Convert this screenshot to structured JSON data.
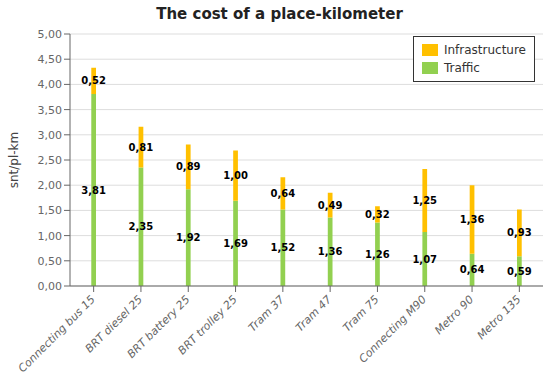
{
  "chart_data": {
    "type": "bar",
    "title": "The cost of a place-kilometer",
    "ylabel": "snt/pl-km",
    "categories": [
      "Connecting bus 15",
      "BRT diesel 25",
      "BRT battery 25",
      "BRT trolley 25",
      "Tram 37",
      "Tram 47",
      "Tram 75",
      "Connecting M90",
      "Metro 90",
      "Metro 135"
    ],
    "series": [
      {
        "name": "Traffic",
        "color": "#92D050",
        "values": [
          3.81,
          2.35,
          1.92,
          1.69,
          1.52,
          1.36,
          1.26,
          1.07,
          0.64,
          0.59
        ],
        "value_labels": [
          "3,81",
          "2,35",
          "1,92",
          "1,69",
          "1,52",
          "1,36",
          "1,26",
          "1,07",
          "0,64",
          "0,59"
        ]
      },
      {
        "name": "Infrastructure",
        "color": "#FFC000",
        "values": [
          0.52,
          0.81,
          0.89,
          1.0,
          0.64,
          0.49,
          0.32,
          1.25,
          1.36,
          0.93
        ],
        "value_labels": [
          "0,52",
          "0,81",
          "0,89",
          "1,00",
          "0,64",
          "0,49",
          "0,32",
          "1,25",
          "1,36",
          "0,93"
        ]
      }
    ],
    "stacked": true,
    "data_labels": true,
    "ylim": [
      0,
      5.0
    ],
    "yticks": [
      {
        "value": 0.0,
        "label": "0,00"
      },
      {
        "value": 0.5,
        "label": "0,50"
      },
      {
        "value": 1.0,
        "label": "1,00"
      },
      {
        "value": 1.5,
        "label": "1,50"
      },
      {
        "value": 2.0,
        "label": "2,00"
      },
      {
        "value": 2.5,
        "label": "2,50"
      },
      {
        "value": 3.0,
        "label": "3,00"
      },
      {
        "value": 3.5,
        "label": "3,50"
      },
      {
        "value": 4.0,
        "label": "4,00"
      },
      {
        "value": 4.5,
        "label": "4,50"
      },
      {
        "value": 5.0,
        "label": "5,00"
      }
    ],
    "grid": true,
    "legend": "upper right"
  }
}
